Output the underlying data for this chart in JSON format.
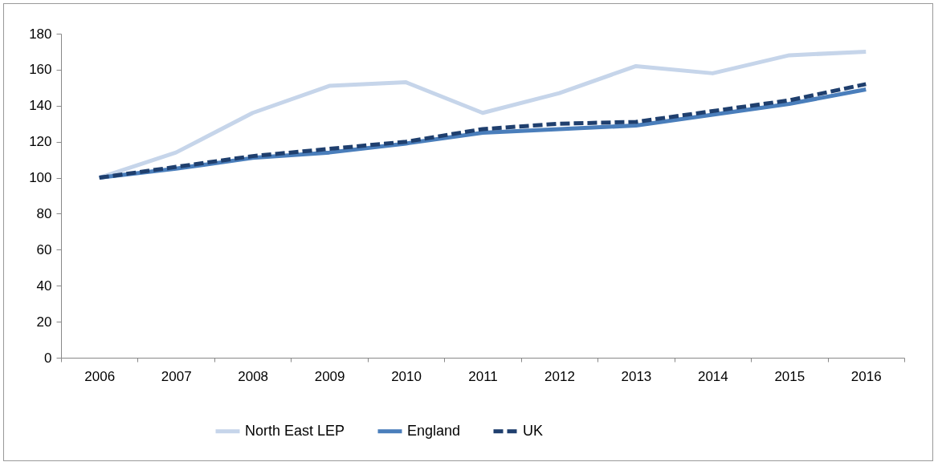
{
  "chart_data": {
    "type": "line",
    "categories": [
      "2006",
      "2007",
      "2008",
      "2009",
      "2010",
      "2011",
      "2012",
      "2013",
      "2014",
      "2015",
      "2016"
    ],
    "series": [
      {
        "name": "North East LEP",
        "color": "#c6d5ea",
        "line_style": "solid",
        "values": [
          100,
          114,
          136,
          151,
          153,
          136,
          147,
          162,
          158,
          168,
          170
        ]
      },
      {
        "name": "England",
        "color": "#4a7ebb",
        "line_style": "solid",
        "values": [
          100,
          105,
          111,
          114,
          119,
          125,
          127,
          129,
          135,
          141,
          149
        ]
      },
      {
        "name": "UK",
        "color": "#1f3f6e",
        "line_style": "dashed",
        "values": [
          100,
          106,
          112,
          116,
          120,
          127,
          130,
          131,
          137,
          143,
          152
        ]
      }
    ],
    "ylim": [
      0,
      180
    ],
    "yticks": [
      0,
      20,
      40,
      60,
      80,
      100,
      120,
      140,
      160,
      180
    ],
    "grid": false,
    "legend": "bottom",
    "marker": "none"
  }
}
